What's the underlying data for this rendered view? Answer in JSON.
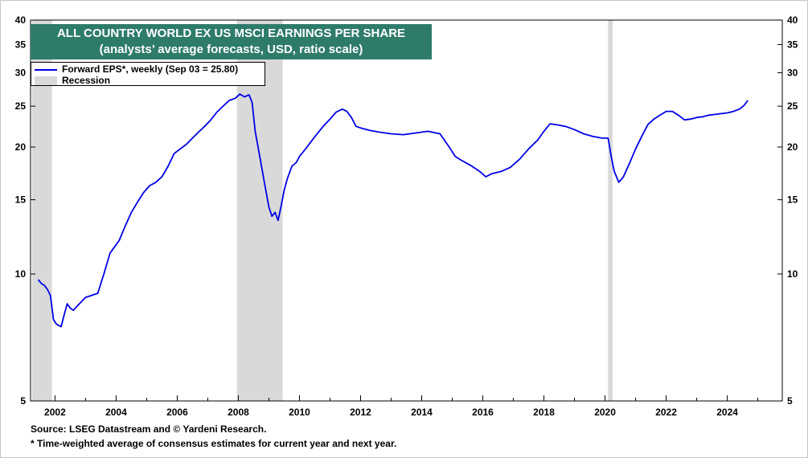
{
  "title_lines": [
    "ALL COUNTRY WORLD EX US MSCI EARNINGS PER SHARE",
    "(analysts’ average forecasts, USD, ratio scale)"
  ],
  "legend": {
    "series_label": "Forward EPS*, weekly (Sep 03 = 25.80)",
    "recession_label": "Recession"
  },
  "footnotes": {
    "source": "Source: LSEG Datastream and © Yardeni Research.",
    "note": "* Time-weighted average of consensus estimates for current year and next year."
  },
  "colors": {
    "series": "#0000e6",
    "recession": "#d9d9d9",
    "title_bg": "#2e7b6a"
  },
  "chart_data": {
    "type": "line",
    "scale": "log",
    "ylim": [
      5,
      40
    ],
    "xlim": [
      2001.2,
      2025.8
    ],
    "y_ticks": [
      5,
      10,
      15,
      20,
      25,
      30,
      35,
      40
    ],
    "x_ticks": [
      2002,
      2004,
      2006,
      2008,
      2010,
      2012,
      2014,
      2016,
      2018,
      2020,
      2022,
      2024
    ],
    "x_tick_labels": [
      "2002",
      "2004",
      "2006",
      "2008",
      "2010",
      "2012",
      "2014",
      "2016",
      "2018",
      "2020",
      "2022",
      "2024"
    ],
    "grid": false,
    "legend_position": "top-left",
    "recessions": [
      [
        2001.25,
        2001.9
      ],
      [
        2007.95,
        2009.45
      ],
      [
        2020.1,
        2020.25
      ]
    ],
    "series": [
      {
        "name": "Forward EPS*, weekly (Sep 03 = 25.80)",
        "x": [
          2001.45,
          2001.55,
          2001.65,
          2001.75,
          2001.85,
          2001.95,
          2002.05,
          2002.2,
          2002.3,
          2002.4,
          2002.5,
          2002.6,
          2002.8,
          2003.0,
          2003.2,
          2003.4,
          2003.6,
          2003.8,
          2003.95,
          2004.1,
          2004.3,
          2004.5,
          2004.7,
          2004.9,
          2005.1,
          2005.3,
          2005.5,
          2005.7,
          2005.9,
          2006.1,
          2006.3,
          2006.5,
          2006.7,
          2006.9,
          2007.1,
          2007.3,
          2007.5,
          2007.7,
          2007.9,
          2008.05,
          2008.2,
          2008.35,
          2008.45,
          2008.55,
          2008.7,
          2008.85,
          2009.0,
          2009.1,
          2009.2,
          2009.3,
          2009.4,
          2009.5,
          2009.6,
          2009.75,
          2009.9,
          2010.0,
          2010.2,
          2010.4,
          2010.6,
          2010.8,
          2011.0,
          2011.2,
          2011.4,
          2011.55,
          2011.7,
          2011.85,
          2012.0,
          2012.3,
          2012.6,
          2013.0,
          2013.4,
          2013.8,
          2014.2,
          2014.6,
          2014.9,
          2015.1,
          2015.3,
          2015.6,
          2015.9,
          2016.1,
          2016.3,
          2016.6,
          2016.9,
          2017.2,
          2017.5,
          2017.8,
          2018.0,
          2018.2,
          2018.4,
          2018.7,
          2019.0,
          2019.3,
          2019.6,
          2019.9,
          2020.1,
          2020.2,
          2020.3,
          2020.45,
          2020.6,
          2020.8,
          2021.0,
          2021.2,
          2021.4,
          2021.6,
          2021.8,
          2022.0,
          2022.2,
          2022.4,
          2022.6,
          2022.8,
          2023.0,
          2023.2,
          2023.4,
          2023.6,
          2023.8,
          2024.0,
          2024.2,
          2024.4,
          2024.55,
          2024.67
        ],
        "values": [
          9.7,
          9.5,
          9.4,
          9.2,
          8.9,
          7.8,
          7.6,
          7.5,
          8.0,
          8.5,
          8.3,
          8.2,
          8.5,
          8.8,
          8.9,
          9.0,
          10.0,
          11.2,
          11.6,
          12.0,
          13.0,
          14.0,
          14.8,
          15.6,
          16.2,
          16.5,
          17.0,
          18.0,
          19.3,
          19.8,
          20.3,
          21.0,
          21.7,
          22.4,
          23.2,
          24.2,
          25.0,
          25.8,
          26.1,
          26.7,
          26.3,
          26.6,
          25.5,
          21.8,
          19.0,
          16.5,
          14.4,
          13.7,
          14.0,
          13.4,
          14.5,
          15.8,
          16.8,
          18.0,
          18.4,
          19.0,
          19.8,
          20.7,
          21.6,
          22.5,
          23.3,
          24.2,
          24.6,
          24.3,
          23.5,
          22.4,
          22.2,
          21.9,
          21.7,
          21.5,
          21.4,
          21.6,
          21.8,
          21.5,
          20.0,
          19.0,
          18.6,
          18.1,
          17.5,
          17.0,
          17.3,
          17.5,
          17.9,
          18.7,
          19.8,
          20.8,
          21.8,
          22.7,
          22.6,
          22.4,
          22.0,
          21.5,
          21.2,
          21.0,
          21.0,
          19.0,
          17.5,
          16.5,
          17.0,
          18.3,
          19.8,
          21.2,
          22.6,
          23.3,
          23.8,
          24.3,
          24.3,
          23.8,
          23.2,
          23.3,
          23.5,
          23.6,
          23.8,
          23.9,
          24.0,
          24.1,
          24.3,
          24.6,
          25.1,
          25.8
        ]
      }
    ]
  }
}
